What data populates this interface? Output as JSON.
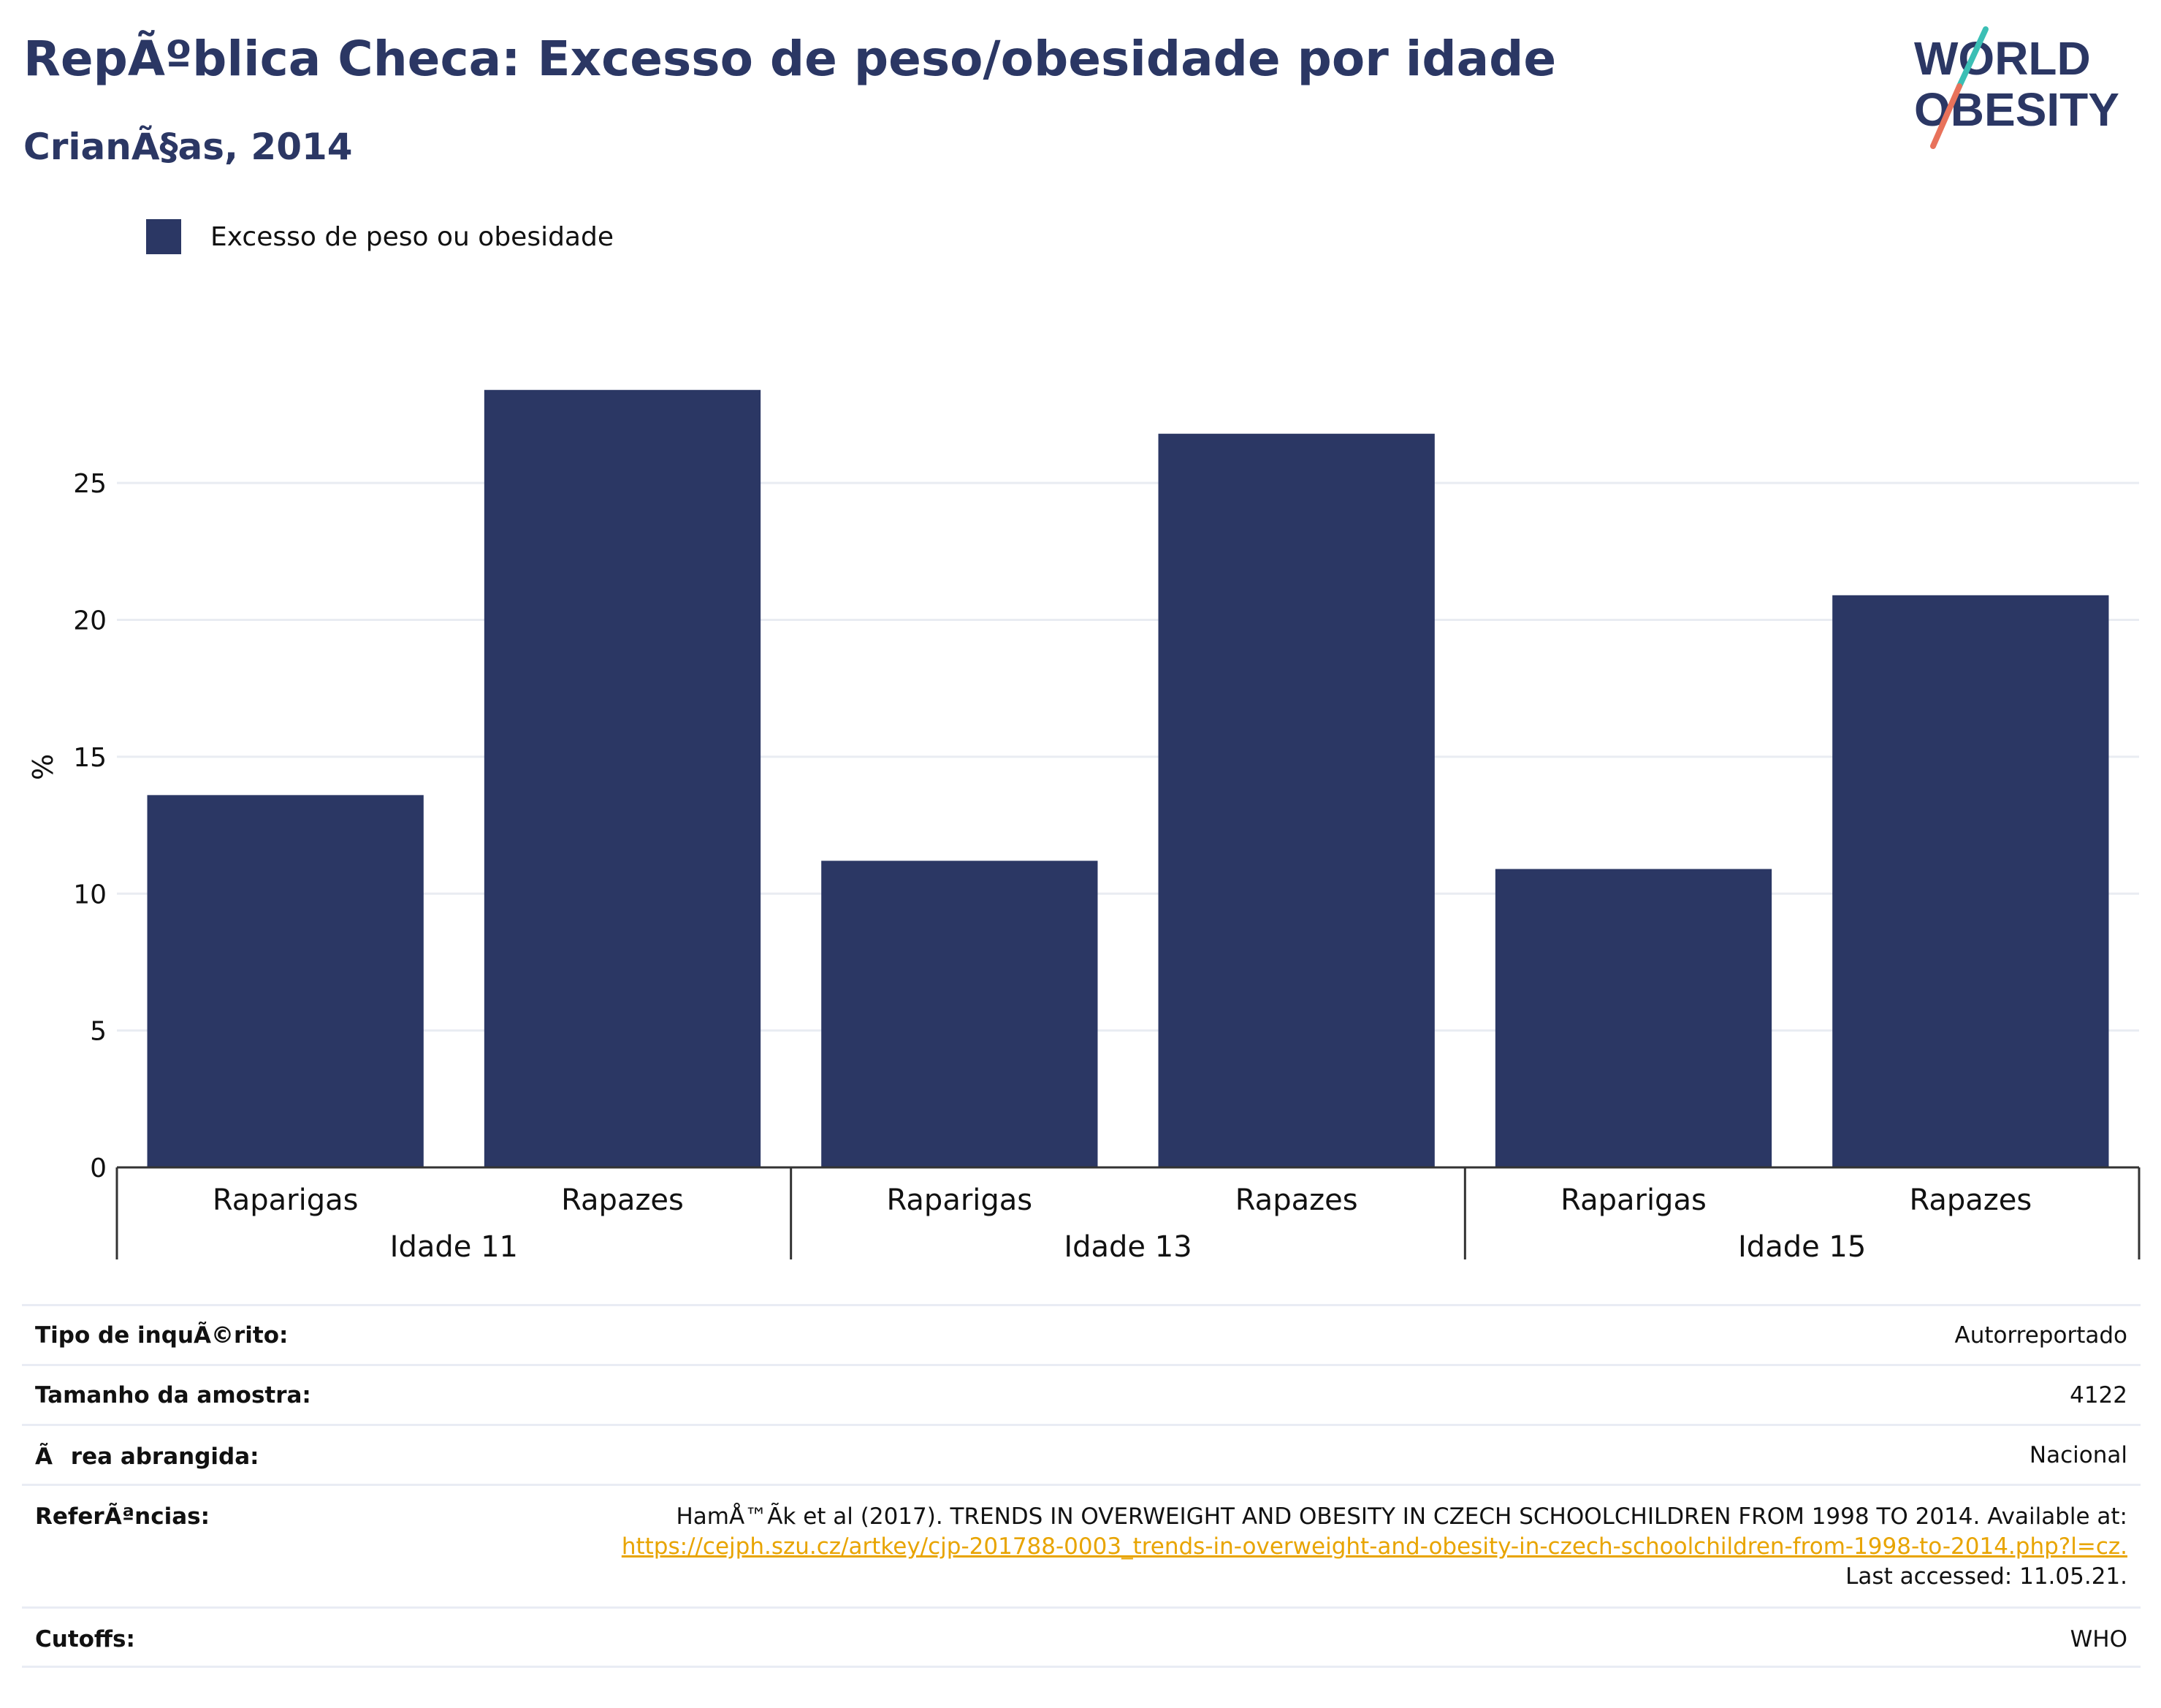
{
  "header": {
    "title": "RepÃºblica Checa: Excesso de peso/obesidade por idade",
    "subtitle": "CrianÃ§as, 2014"
  },
  "logo": {
    "line1": "WORLD",
    "line2": "OBESITY"
  },
  "legend": {
    "label": "Excesso de peso ou obesidade"
  },
  "colors": {
    "bar": "#2b3764",
    "title": "#2b3764",
    "link": "#e8a400",
    "logo_teal": "#3bbfb5",
    "logo_coral": "#e8725b"
  },
  "chart_data": {
    "type": "bar",
    "ylabel": "%",
    "ylim": [
      0,
      28.5
    ],
    "yticks": [
      0,
      5,
      10,
      15,
      20,
      25
    ],
    "grid": true,
    "groups": [
      "Idade 11",
      "Idade 13",
      "Idade 15"
    ],
    "categories": [
      "Raparigas",
      "Rapazes",
      "Raparigas",
      "Rapazes",
      "Raparigas",
      "Rapazes"
    ],
    "series": [
      {
        "name": "Excesso de peso ou obesidade",
        "values": [
          13.6,
          28.4,
          11.2,
          26.8,
          10.9,
          20.9
        ]
      }
    ]
  },
  "meta": {
    "survey_label": "Tipo de inquÃ©rito:",
    "survey_value": "Autorreportado",
    "sample_label": "Tamanho da amostra:",
    "sample_value": "4122",
    "area_label": "Ãrea abrangida:",
    "area_value": "Nacional",
    "ref_label": "ReferÃªncias:",
    "ref_text": "HamÅ™Ã­k et al (2017). TRENDS IN OVERWEIGHT AND OBESITY IN CZECH SCHOOLCHILDREN FROM 1998 TO 2014. Available at:",
    "ref_link": "https://cejph.szu.cz/artkey/cjp-201788-0003_trends-in-overweight-and-obesity-in-czech-schoolchildren-from-1998-to-2014.php?l=cz.",
    "ref_accessed": "Last accessed: 11.05.21.",
    "cutoffs_label": "Cutoffs:",
    "cutoffs_value": "WHO"
  }
}
